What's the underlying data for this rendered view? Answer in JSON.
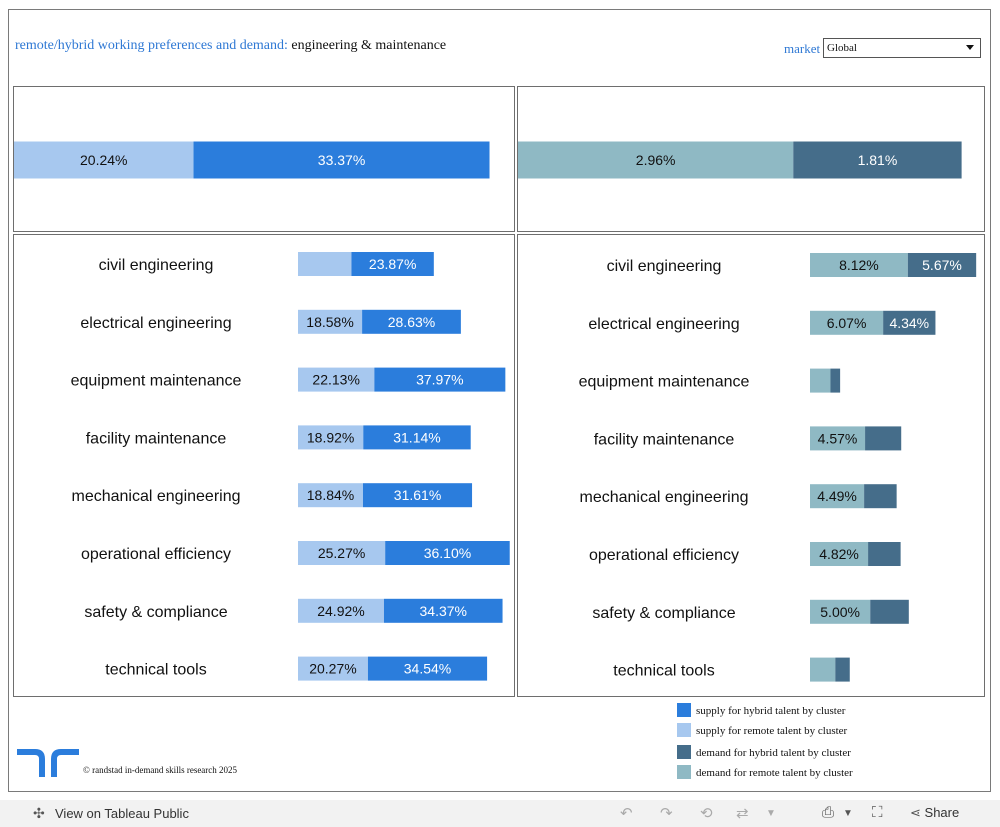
{
  "title": {
    "main": "remote/hybrid working preferences and demand:",
    "cluster": "engineering & maintenance"
  },
  "market": {
    "label": "market",
    "value": "Global"
  },
  "colors": {
    "supply_hybrid": "#2b7ddc",
    "supply_remote": "#a7c8ef",
    "demand_hybrid": "#456d8a",
    "demand_remote": "#8fb9c4"
  },
  "chart_data": [
    {
      "type": "bar",
      "name": "supply-overall",
      "orientation": "horizontal-stacked",
      "series": [
        {
          "name": "supply for remote talent by cluster",
          "values": [
            20.24
          ],
          "labels": [
            "20.24%"
          ]
        },
        {
          "name": "supply for hybrid talent by cluster",
          "values": [
            33.37
          ],
          "labels": [
            "33.37%"
          ]
        }
      ]
    },
    {
      "type": "bar",
      "name": "demand-overall",
      "orientation": "horizontal-stacked",
      "series": [
        {
          "name": "demand for remote talent by cluster",
          "values": [
            2.96
          ],
          "labels": [
            "2.96%"
          ]
        },
        {
          "name": "demand for hybrid talent by cluster",
          "values": [
            1.81
          ],
          "labels": [
            "1.81%"
          ]
        }
      ]
    },
    {
      "type": "bar",
      "name": "supply-by-skill",
      "orientation": "horizontal-stacked",
      "categories": [
        "civil engineering",
        "electrical engineering",
        "equipment maintenance",
        "facility maintenance",
        "mechanical engineering",
        "operational efficiency",
        "safety & compliance",
        "technical tools"
      ],
      "series": [
        {
          "name": "supply for remote talent by cluster",
          "values": [
            15.5,
            18.58,
            22.13,
            18.92,
            18.84,
            25.27,
            24.92,
            20.27
          ],
          "labels": [
            "",
            "18.58%",
            "22.13%",
            "18.92%",
            "18.84%",
            "25.27%",
            "24.92%",
            "20.27%"
          ]
        },
        {
          "name": "supply for hybrid talent by cluster",
          "values": [
            23.87,
            28.63,
            37.97,
            31.14,
            31.61,
            36.1,
            34.37,
            34.54
          ],
          "labels": [
            "23.87%",
            "28.63%",
            "37.97%",
            "31.14%",
            "31.61%",
            "36.10%",
            "34.37%",
            "34.54%"
          ]
        }
      ]
    },
    {
      "type": "bar",
      "name": "demand-by-skill",
      "orientation": "horizontal-stacked",
      "categories": [
        "civil engineering",
        "electrical engineering",
        "equipment maintenance",
        "facility maintenance",
        "mechanical engineering",
        "operational efficiency",
        "safety & compliance",
        "technical tools"
      ],
      "series": [
        {
          "name": "demand for remote talent by cluster",
          "values": [
            8.12,
            6.07,
            1.7,
            4.57,
            4.49,
            4.82,
            5.0,
            2.1
          ],
          "labels": [
            "8.12%",
            "6.07%",
            "",
            "4.57%",
            "4.49%",
            "4.82%",
            "5.00%",
            ""
          ]
        },
        {
          "name": "demand for hybrid talent by cluster",
          "values": [
            5.67,
            4.34,
            0.8,
            3.0,
            2.7,
            2.7,
            3.2,
            1.2
          ],
          "labels": [
            "5.67%",
            "4.34%",
            "",
            "",
            "",
            "",
            "",
            ""
          ]
        }
      ]
    }
  ],
  "legend": [
    {
      "label": "supply for hybrid talent by cluster",
      "color": "#2b7ddc"
    },
    {
      "label": "supply for remote talent by cluster",
      "color": "#a7c8ef"
    },
    {
      "label": "demand for hybrid talent by cluster",
      "color": "#456d8a"
    },
    {
      "label": "demand for remote talent by cluster",
      "color": "#8fb9c4"
    }
  ],
  "footer": {
    "copyright": "© randstad in-demand skills research 2025",
    "view_label": "View on Tableau Public",
    "share_label": "Share"
  }
}
